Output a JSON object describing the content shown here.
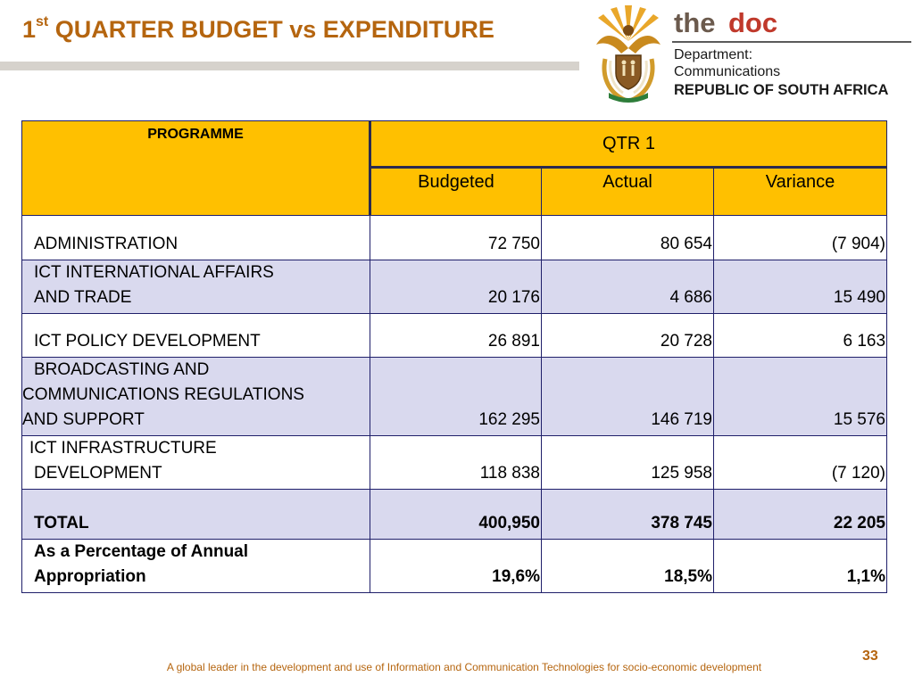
{
  "header": {
    "title_prefix": "1",
    "title_sup": "st",
    "title_rest": " QUARTER BUDGET vs EXPENDITURE"
  },
  "brand": {
    "the": "the",
    "doc": "doc",
    "line1": "Department:",
    "line2": "Communications",
    "line3": "REPUBLIC OF SOUTH AFRICA",
    "colors": {
      "accent": "#c0392b",
      "the": "#6b5a4d"
    }
  },
  "table": {
    "col_programme": "PROGRAMME",
    "col_group": "QTR 1",
    "col_budgeted": "Budgeted",
    "col_actual": "Actual",
    "col_variance": "Variance",
    "rows": [
      {
        "name_lines": [
          "ADMINISTRATION"
        ],
        "budgeted": "72 750",
        "actual": "80 654",
        "variance": "(7 904)"
      },
      {
        "name_lines": [
          "ICT INTERNATIONAL AFFAIRS",
          "AND TRADE"
        ],
        "budgeted": "20 176",
        "actual": "4 686",
        "variance": "15 490"
      },
      {
        "name_lines": [
          "ICT POLICY DEVELOPMENT"
        ],
        "budgeted": "26 891",
        "actual": "20 728",
        "variance": "6 163"
      },
      {
        "name_lines": [
          "BROADCASTING AND",
          "COMMUNICATIONS REGULATIONS",
          "AND SUPPORT"
        ],
        "budgeted": "162 295",
        "actual": "146 719",
        "variance": "15 576"
      },
      {
        "name_lines": [
          "ICT INFRASTRUCTURE",
          "DEVELOPMENT"
        ],
        "budgeted": "118 838",
        "actual": "125 958",
        "variance": "(7 120)"
      },
      {
        "name_lines": [
          "TOTAL"
        ],
        "budgeted": "400,950",
        "actual": "378 745",
        "variance": "22 205"
      },
      {
        "name_lines": [
          "As a Percentage of Annual",
          "Appropriation"
        ],
        "budgeted": "19,6%",
        "actual": "18,5%",
        "variance": "1,1%"
      }
    ],
    "colors": {
      "header": "#ffc000",
      "band": "#d9d9ee",
      "border": "#1f1f6a"
    }
  },
  "footer": {
    "page_number": "33",
    "tagline": "A global leader in the development and use of Information and Communication Technologies for socio-economic development"
  }
}
